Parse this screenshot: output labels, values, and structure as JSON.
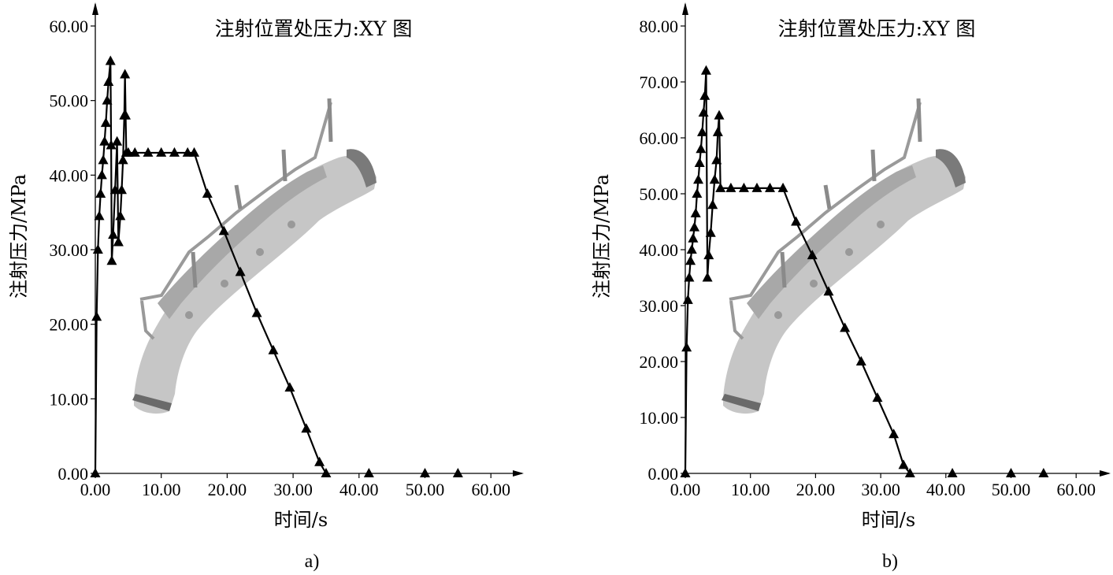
{
  "figure": {
    "panel_labels": [
      "a)",
      "b)"
    ]
  },
  "chart_data": [
    {
      "type": "line",
      "title": "注射位置处压力:XY 图",
      "xlabel": "时间/s",
      "ylabel": "注射压力/MPa",
      "xlim": [
        0,
        60
      ],
      "ylim": [
        0,
        60
      ],
      "x_ticks": [
        "0.00",
        "10.00",
        "20.00",
        "30.00",
        "40.00",
        "50.00",
        "60.00"
      ],
      "y_ticks": [
        "0.00",
        "10.00",
        "20.00",
        "30.00",
        "40.00",
        "50.00",
        "60.00"
      ],
      "marker": "triangle",
      "background_image": "bumper-part-gray-silhouette",
      "series": [
        {
          "x": [
            0.0,
            0.2,
            0.4,
            0.6,
            0.8,
            1.0,
            1.2,
            1.4,
            1.6,
            1.8,
            2.0,
            2.3,
            2.4,
            2.5,
            2.7,
            3.0,
            3.3,
            3.5,
            3.5,
            3.8,
            4.0,
            4.2,
            4.4,
            4.5,
            4.6,
            4.7,
            5.0,
            6.0,
            8.0,
            10.0,
            12.0,
            14.0,
            15.0,
            17.0,
            19.5,
            22.0,
            24.5,
            27.0,
            29.5,
            32.0,
            34.0,
            35.0
          ],
          "y": [
            0.0,
            21.0,
            30.0,
            34.5,
            37.5,
            40.0,
            42.0,
            44.5,
            47.0,
            50.0,
            52.5,
            55.3,
            44.0,
            28.5,
            32.0,
            38.0,
            44.5,
            31.0,
            31.0,
            34.5,
            38.0,
            42.0,
            48.0,
            53.5,
            48.0,
            43.0,
            43.0,
            43.0,
            43.0,
            43.0,
            43.0,
            43.0,
            43.0,
            37.5,
            32.5,
            27.0,
            21.5,
            16.5,
            11.5,
            6.0,
            1.5,
            0.0
          ]
        },
        {
          "x": [
            41.5,
            50.0,
            55.0
          ],
          "y": [
            0.0,
            0.0,
            0.0
          ]
        }
      ]
    },
    {
      "type": "line",
      "title": "注射位置处压力:XY 图",
      "xlabel": "时间/s",
      "ylabel": "注射压力/MPa",
      "xlim": [
        0,
        60
      ],
      "ylim": [
        0,
        80
      ],
      "x_ticks": [
        "0.00",
        "10.00",
        "20.00",
        "30.00",
        "40.00",
        "50.00",
        "60.00"
      ],
      "y_ticks": [
        "0.00",
        "10.00",
        "20.00",
        "30.00",
        "40.00",
        "50.00",
        "60.00",
        "70.00",
        "80.00"
      ],
      "marker": "triangle",
      "background_image": "bumper-part-gray-silhouette",
      "series": [
        {
          "x": [
            0.0,
            0.2,
            0.4,
            0.6,
            0.8,
            1.0,
            1.2,
            1.4,
            1.6,
            1.8,
            2.0,
            2.2,
            2.4,
            2.6,
            2.8,
            3.0,
            3.2,
            3.4,
            3.6,
            3.9,
            4.2,
            4.5,
            4.8,
            5.0,
            5.2,
            5.4,
            7.0,
            9.0,
            11.0,
            13.0,
            15.0,
            17.0,
            19.5,
            22.0,
            24.5,
            27.0,
            29.5,
            32.0,
            33.5,
            34.5
          ],
          "y": [
            0.0,
            22.5,
            31.0,
            35.0,
            38.0,
            40.0,
            42.0,
            44.0,
            46.5,
            50.0,
            52.5,
            55.5,
            58.0,
            61.0,
            64.5,
            67.5,
            72.0,
            35.0,
            39.0,
            43.0,
            48.0,
            52.5,
            56.0,
            61.0,
            64.0,
            51.0,
            51.0,
            51.0,
            51.0,
            51.0,
            51.0,
            45.0,
            39.0,
            32.5,
            26.0,
            20.0,
            13.5,
            7.0,
            1.5,
            0.0
          ]
        },
        {
          "x": [
            41.0,
            50.0,
            55.0
          ],
          "y": [
            0.0,
            0.0,
            0.0
          ]
        }
      ]
    }
  ]
}
